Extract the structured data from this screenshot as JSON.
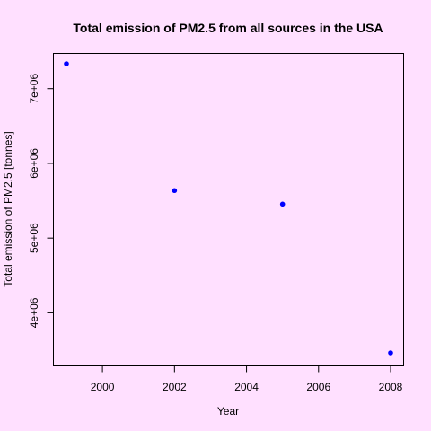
{
  "colors": {
    "background": "#FFE0FF",
    "foreground": "#000000",
    "point": "#0000FF"
  },
  "chart_data": {
    "type": "scatter",
    "title": "Total emission of PM2.5 from all sources in the USA",
    "xlabel": "Year",
    "ylabel": "Total emission of PM2.5 [tonnes]",
    "x": [
      1999,
      2002,
      2005,
      2008
    ],
    "y": [
      7332967,
      5635780,
      5454703,
      3464206
    ],
    "xlim": [
      1999,
      2008
    ],
    "ylim": [
      3464206,
      7332967
    ],
    "x_ticks": [
      2000,
      2002,
      2004,
      2006,
      2008
    ],
    "x_tick_labels": [
      "2000",
      "2002",
      "2004",
      "2006",
      "2008"
    ],
    "y_ticks": [
      4000000,
      5000000,
      6000000,
      7000000
    ],
    "y_tick_labels": [
      "4e+06",
      "5e+06",
      "6e+06",
      "7e+06"
    ],
    "grid": false,
    "legend": "none"
  }
}
